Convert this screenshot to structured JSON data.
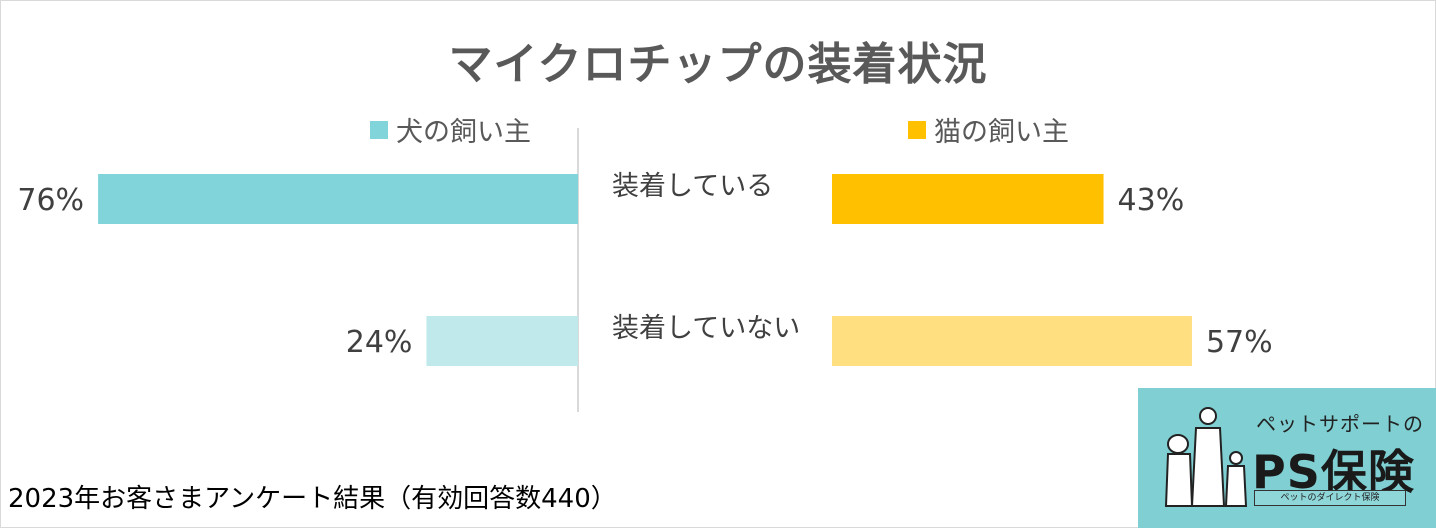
{
  "title": "マイクロチップの装着状況",
  "legend": {
    "dog": "犬の飼い主",
    "cat": "猫の飼い主"
  },
  "colors": {
    "dog_primary": "#81d5da",
    "dog_secondary": "#c0e9eb",
    "cat_primary": "#ffc000",
    "cat_secondary": "#ffdf80",
    "text": "#595959"
  },
  "chart_data": {
    "type": "bar",
    "orientation": "horizontal-butterfly",
    "title": "マイクロチップの装着状況",
    "categories": [
      "装着している",
      "装着していない"
    ],
    "series": [
      {
        "name": "犬の飼い主",
        "values": [
          76,
          24
        ],
        "labels": [
          "76%",
          "24%"
        ]
      },
      {
        "name": "猫の飼い主",
        "values": [
          43,
          57
        ],
        "labels": [
          "43%",
          "57%"
        ]
      }
    ],
    "unit": "%",
    "xlim": [
      0,
      100
    ],
    "legend_position": "top",
    "grid": false
  },
  "footnote": "2023年お客さまアンケート結果（有効回答数440）",
  "logo": {
    "tagline": "ペットサポートの",
    "brand": "PS保険",
    "subline": "ペットのダイレクト保険"
  }
}
